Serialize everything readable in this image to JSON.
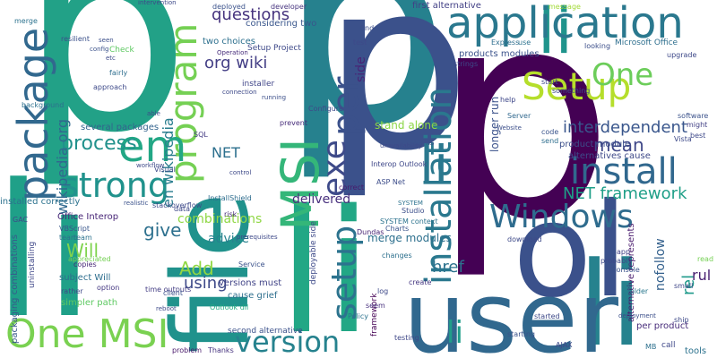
{
  "words": [
    {
      "text": "p",
      "color": "#22a187"
    },
    {
      "text": "p",
      "color": "#26818e"
    },
    {
      "text": "p",
      "color": "#3b518b"
    },
    {
      "text": "p",
      "color": "#440154"
    },
    {
      "text": "li",
      "color": "#1fa088"
    },
    {
      "text": "li",
      "color": "#22a785"
    },
    {
      "text": "li",
      "color": "#26828e"
    },
    {
      "text": "li",
      "color": "#1f948c"
    },
    {
      "text": "li",
      "color": "#2a788e"
    },
    {
      "text": "ol",
      "color": "#3b518b"
    },
    {
      "text": "file",
      "color": "#20928c"
    },
    {
      "text": "user",
      "color": "#31688e"
    },
    {
      "text": "application",
      "color": "#2a788e"
    },
    {
      "text": "package",
      "color": "#31688e"
    },
    {
      "text": "program",
      "color": "#75d054"
    },
    {
      "text": "Setup",
      "color": "#b5de2b"
    },
    {
      "text": "One",
      "color": "#6ccd5a"
    },
    {
      "text": "One MSI",
      "color": "#7ad151"
    },
    {
      "text": "MSI",
      "color": "#34b679"
    },
    {
      "text": "per",
      "color": "#3b518b"
    },
    {
      "text": "em",
      "color": "#22a785"
    },
    {
      "text": "strong",
      "color": "#20928c"
    },
    {
      "text": "install",
      "color": "#31688e"
    },
    {
      "text": "installation",
      "color": "#2a788e"
    },
    {
      "text": "exe",
      "color": "#3e4a89"
    },
    {
      "text": "setup",
      "color": "#2c738e"
    },
    {
      "text": "Windows",
      "color": "#2f6c8e"
    },
    {
      "text": "version",
      "color": "#26828e"
    },
    {
      "text": "li",
      "color": "#1f9e89"
    },
    {
      "text": "process",
      "color": "#21918c"
    },
    {
      "text": "NET framework",
      "color": "#1f9f88"
    },
    {
      "text": "interdependent",
      "color": "#39568c"
    },
    {
      "text": "mean",
      "color": "#3f4788"
    },
    {
      "text": "questions",
      "color": "#46337e"
    },
    {
      "text": "org wiki",
      "color": "#433e85"
    },
    {
      "text": "wikipedia org",
      "color": "#31688e"
    },
    {
      "text": "en wikipedia",
      "color": "#287d8e"
    },
    {
      "text": "give",
      "color": "#2d708e"
    },
    {
      "text": "Will",
      "color": "#7fd34e"
    },
    {
      "text": "Add",
      "color": "#90d743"
    },
    {
      "text": "using",
      "color": "#3e4a89"
    },
    {
      "text": "advice",
      "color": "#26828e"
    },
    {
      "text": "combinations",
      "color": "#8fd744"
    },
    {
      "text": "delivered",
      "color": "#472f7d"
    },
    {
      "text": "NET",
      "color": "#2d708e"
    },
    {
      "text": "href",
      "color": "#2c728e"
    },
    {
      "text": "rel",
      "color": "#1f9a8a"
    },
    {
      "text": "rul",
      "color": "#481f70"
    },
    {
      "text": "nofollow",
      "color": "#34618d"
    },
    {
      "text": "side",
      "color": "#482475"
    },
    {
      "text": "first alternative",
      "color": "#424086"
    },
    {
      "text": "products modules",
      "color": "#3b528b"
    },
    {
      "text": "stand alone",
      "color": "#8bd646"
    },
    {
      "text": "longer run",
      "color": "#3b528b"
    },
    {
      "text": "merge modules",
      "color": "#2d708e"
    },
    {
      "text": "product module",
      "color": "#3c4f8a"
    },
    {
      "text": "alternatives cause",
      "color": "#3e4989"
    },
    {
      "text": "per product",
      "color": "#472c7a"
    },
    {
      "text": "alternative represents",
      "color": "#481a6c"
    },
    {
      "text": "installed correctly",
      "color": "#2c728e"
    },
    {
      "text": "Office Interop",
      "color": "#482677"
    },
    {
      "text": "several packages",
      "color": "#33638d"
    },
    {
      "text": "two choices",
      "color": "#2d708e"
    },
    {
      "text": "considering two",
      "color": "#39568c"
    },
    {
      "text": "Setup Project",
      "color": "#3e4989"
    },
    {
      "text": "installer",
      "color": "#404588"
    },
    {
      "text": "packaging combinations",
      "color": "#38598c"
    },
    {
      "text": "simpler path",
      "color": "#5ec962"
    },
    {
      "text": "subject Will",
      "color": "#2e6e8e"
    },
    {
      "text": "cause grief",
      "color": "#2e6f8e"
    },
    {
      "text": "versions must",
      "color": "#414487"
    },
    {
      "text": "Outlook dll",
      "color": "#25ab82"
    },
    {
      "text": "second alternative",
      "color": "#3b518b"
    },
    {
      "text": "deployable side",
      "color": "#3e4a89"
    },
    {
      "text": "SQL",
      "color": "#443a83"
    },
    {
      "text": "InstallShield",
      "color": "#2e6d8e"
    },
    {
      "text": "Interop Outlook",
      "color": "#3f4889"
    },
    {
      "text": "ASP Net",
      "color": "#3d4d8a"
    },
    {
      "text": "SYSTEM context",
      "color": "#2c738e"
    },
    {
      "text": "uninstalling",
      "color": "#3f4889"
    },
    {
      "text": "correct",
      "color": "#481a6c"
    },
    {
      "text": "works",
      "color": "#3a548c"
    },
    {
      "text": "Website",
      "color": "#3c4f8a"
    },
    {
      "text": "Microsoft Office",
      "color": "#2e6f8e"
    },
    {
      "text": "Configure",
      "color": "#3e4a89"
    },
    {
      "text": "prevent",
      "color": "#472c7a"
    },
    {
      "text": "appreciated",
      "color": "#75d054"
    },
    {
      "text": "VBScript",
      "color": "#39568c"
    },
    {
      "text": "team",
      "color": "#2d708e"
    },
    {
      "text": "copies",
      "color": "#482878"
    },
    {
      "text": "rather",
      "color": "#3e4989"
    },
    {
      "text": "option",
      "color": "#453882"
    },
    {
      "text": "time outputs",
      "color": "#433d84"
    },
    {
      "text": "Service",
      "color": "#3b528b"
    },
    {
      "text": "problem",
      "color": "#48186a"
    },
    {
      "text": "Thanks",
      "color": "#46327e"
    },
    {
      "text": "testing",
      "color": "#3f4788"
    },
    {
      "text": "framework",
      "color": "#440154"
    },
    {
      "text": "tools",
      "color": "#2c728e"
    },
    {
      "text": "call",
      "color": "#3f4889"
    },
    {
      "text": "MB",
      "color": "#2d708e"
    },
    {
      "text": "ship",
      "color": "#3e4a89"
    },
    {
      "text": "folder",
      "color": "#2a788e"
    },
    {
      "text": "app",
      "color": "#424086"
    },
    {
      "text": "probably",
      "color": "#3e4989"
    },
    {
      "text": "Console",
      "color": "#3b528b"
    },
    {
      "text": "create",
      "color": "#453781"
    },
    {
      "text": "changes",
      "color": "#2d708e"
    },
    {
      "text": "help",
      "color": "#3f4889"
    },
    {
      "text": "Server",
      "color": "#31688e"
    },
    {
      "text": "send",
      "color": "#2e6e8e"
    },
    {
      "text": "Vista",
      "color": "#3e4a89"
    },
    {
      "text": "code",
      "color": "#3a548c"
    },
    {
      "text": "might",
      "color": "#424186"
    },
    {
      "text": "best",
      "color": "#3e4989"
    },
    {
      "text": "resilient",
      "color": "#3b518b"
    },
    {
      "text": "merge",
      "color": "#2c728e"
    },
    {
      "text": "background",
      "color": "#2d708e"
    },
    {
      "text": "approach",
      "color": "#3e4a89"
    },
    {
      "text": "fairly",
      "color": "#2e6e8e"
    },
    {
      "text": "deployed",
      "color": "#3b528b"
    },
    {
      "text": "developer",
      "color": "#46337e"
    },
    {
      "text": "find",
      "color": "#3c4f8a"
    },
    {
      "text": "test",
      "color": "#3e4989"
    },
    {
      "text": "message",
      "color": "#a2da37"
    },
    {
      "text": "looking",
      "color": "#3c4f8a"
    },
    {
      "text": "strings",
      "color": "#3e4989"
    },
    {
      "text": "start",
      "color": "#3f4788"
    },
    {
      "text": "something",
      "color": "#3e4a89"
    },
    {
      "text": "Express",
      "color": "#2e6e8e"
    },
    {
      "text": "use",
      "color": "#2c728e"
    },
    {
      "text": "stackoverflow",
      "color": "#3e4a89"
    },
    {
      "text": "team",
      "color": "#2c728e"
    },
    {
      "text": "risk",
      "color": "#472d7b"
    },
    {
      "text": "data",
      "color": "#3e4989"
    },
    {
      "text": "client",
      "color": "#3b528b"
    },
    {
      "text": "GAC",
      "color": "#3e4989"
    },
    {
      "text": "download",
      "color": "#3e4a89"
    },
    {
      "text": "Charts",
      "color": "#3a548c"
    },
    {
      "text": "Dundas",
      "color": "#482475"
    },
    {
      "text": "log",
      "color": "#3e4989"
    },
    {
      "text": "seem",
      "color": "#472f7d"
    },
    {
      "text": "Policy",
      "color": "#2c728e"
    },
    {
      "text": "started",
      "color": "#3e4a89"
    },
    {
      "text": "starting",
      "color": "#3b528b"
    },
    {
      "text": "AJAX",
      "color": "#3e4989"
    },
    {
      "text": "small",
      "color": "#3f4788"
    },
    {
      "text": "read",
      "color": "#75d054"
    },
    {
      "text": "upgrade",
      "color": "#3e4989"
    },
    {
      "text": "software",
      "color": "#3b528b"
    },
    {
      "text": "Visual",
      "color": "#3e4a89"
    },
    {
      "text": "Studio",
      "color": "#3c4f8a"
    },
    {
      "text": "Check",
      "color": "#5ec962"
    },
    {
      "text": "intervention",
      "color": "#3e4989"
    },
    {
      "text": "Operation",
      "color": "#472d7b"
    },
    {
      "text": "connection",
      "color": "#3e4a89"
    },
    {
      "text": "running",
      "color": "#3c4f8a"
    },
    {
      "text": "able",
      "color": "#3e4989"
    },
    {
      "text": "workflow",
      "color": "#3e4a89"
    },
    {
      "text": "realistic",
      "color": "#3b528b"
    },
    {
      "text": "prerequisites",
      "color": "#3e4989"
    },
    {
      "text": "deployment",
      "color": "#3c4f8a"
    },
    {
      "text": "reboot",
      "color": "#3e4a89"
    },
    {
      "text": "unavailability",
      "color": "#3e4989"
    },
    {
      "text": "SYSTEM",
      "color": "#2c728e"
    },
    {
      "text": "control",
      "color": "#3e4a89"
    },
    {
      "text": "config",
      "color": "#3b528b"
    },
    {
      "text": "etc",
      "color": "#3e4989"
    },
    {
      "text": "seen",
      "color": "#3c4f8a"
    }
  ]
}
